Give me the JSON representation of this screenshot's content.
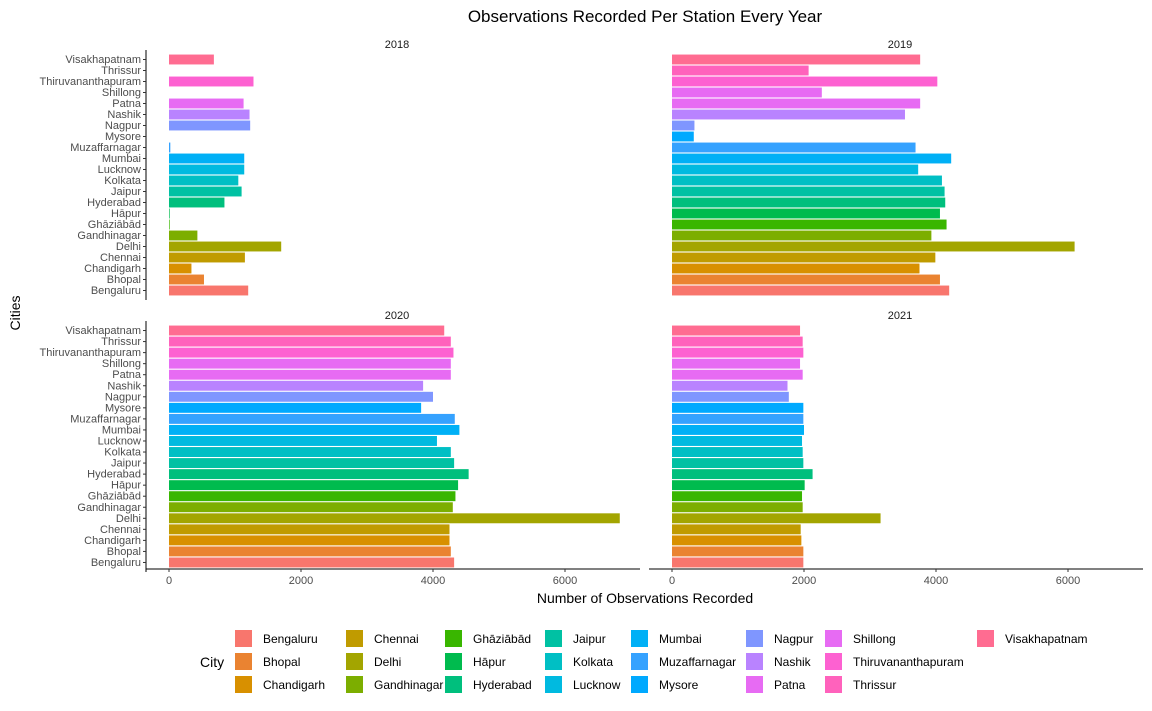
{
  "chart_data": {
    "type": "bar",
    "orientation": "horizontal",
    "title": "Observations Recorded Per Station Every Year",
    "xlabel": "Number of Observations Recorded",
    "ylabel": "Cities",
    "xlim": [
      0,
      7000
    ],
    "xticks": [
      0,
      2000,
      4000,
      6000
    ],
    "grid": false,
    "legend_position": "bottom",
    "legend_title": "City",
    "categories": [
      "Bengaluru",
      "Bhopal",
      "Chandigarh",
      "Chennai",
      "Delhi",
      "Gandhinagar",
      "Ghāziābād",
      "Hāpur",
      "Hyderabad",
      "Jaipur",
      "Kolkata",
      "Lucknow",
      "Mumbai",
      "Muzaffarnagar",
      "Mysore",
      "Nagpur",
      "Nashik",
      "Patna",
      "Shillong",
      "Thiruvananthapuram",
      "Thrissur",
      "Visakhapatnam"
    ],
    "colors": [
      "#F8766D",
      "#EA8331",
      "#D89000",
      "#C09B00",
      "#A3A500",
      "#7CAE00",
      "#39B600",
      "#00BB4E",
      "#00BF7D",
      "#00C1A3",
      "#00BFC4",
      "#00BAE0",
      "#00B0F6",
      "#35A2FF",
      "#00A9FF",
      "#7F96FF",
      "#B983FF",
      "#E76BF3",
      "#E76BF3",
      "#FD61D1",
      "#FF62BC",
      "#FF6C91"
    ],
    "panels": [
      {
        "label": "2018",
        "values": [
          1200,
          530,
          340,
          1150,
          1700,
          430,
          10,
          10,
          840,
          1100,
          1050,
          1140,
          1140,
          20,
          0,
          1230,
          1220,
          1130,
          0,
          1280,
          0,
          680
        ]
      },
      {
        "label": "2019",
        "values": [
          4200,
          4060,
          3750,
          3990,
          6100,
          3930,
          4160,
          4060,
          4140,
          4130,
          4090,
          3730,
          4230,
          3690,
          330,
          340,
          3530,
          3760,
          2270,
          4020,
          2070,
          3760
        ]
      },
      {
        "label": "2020",
        "values": [
          4320,
          4270,
          4250,
          4250,
          6830,
          4300,
          4340,
          4380,
          4540,
          4320,
          4270,
          4060,
          4400,
          4330,
          3820,
          4000,
          3850,
          4270,
          4270,
          4310,
          4270,
          4170
        ]
      },
      {
        "label": "2021",
        "values": [
          1990,
          1990,
          1960,
          1950,
          3160,
          1980,
          1970,
          2010,
          2130,
          1990,
          1980,
          1970,
          2000,
          1990,
          1990,
          1770,
          1750,
          1980,
          1940,
          1990,
          1980,
          1940
        ]
      }
    ]
  }
}
